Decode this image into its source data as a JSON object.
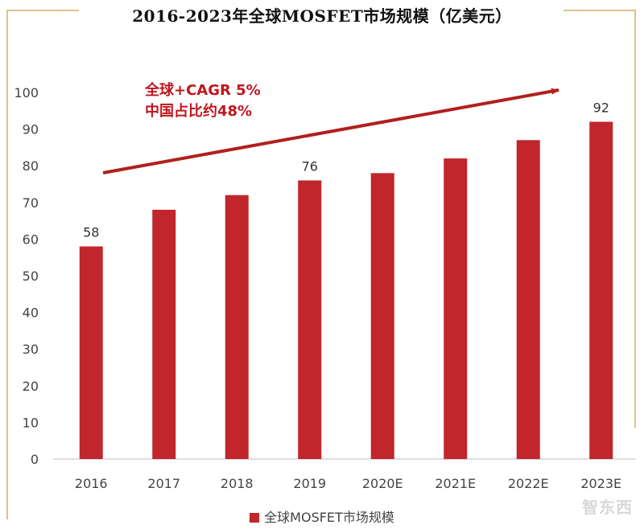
{
  "chart_data": {
    "type": "bar",
    "title": "2016-2023年全球MOSFET市场规模（亿美元）",
    "categories": [
      "2016",
      "2017",
      "2018",
      "2019",
      "2020E",
      "2021E",
      "2022E",
      "2023E"
    ],
    "series": [
      {
        "name": "全球MOSFET市场规模",
        "values": [
          58,
          68,
          72,
          76,
          78,
          82,
          87,
          92
        ],
        "color": "#c0262b"
      }
    ],
    "data_labels": [
      {
        "category": "2016",
        "value": 58,
        "text": "58"
      },
      {
        "category": "2019",
        "value": 76,
        "text": "76"
      },
      {
        "category": "2023E",
        "value": 92,
        "text": "92"
      }
    ],
    "y_ticks": [
      0,
      10,
      20,
      30,
      40,
      50,
      60,
      70,
      80,
      90,
      100
    ],
    "ylim": [
      0,
      100
    ],
    "grid": false,
    "legend_position": "bottom",
    "annotation": {
      "lines": [
        "全球+CAGR 5%",
        "中国占比约48%"
      ],
      "color": "#c0161d"
    }
  },
  "watermark_text": "智东西"
}
